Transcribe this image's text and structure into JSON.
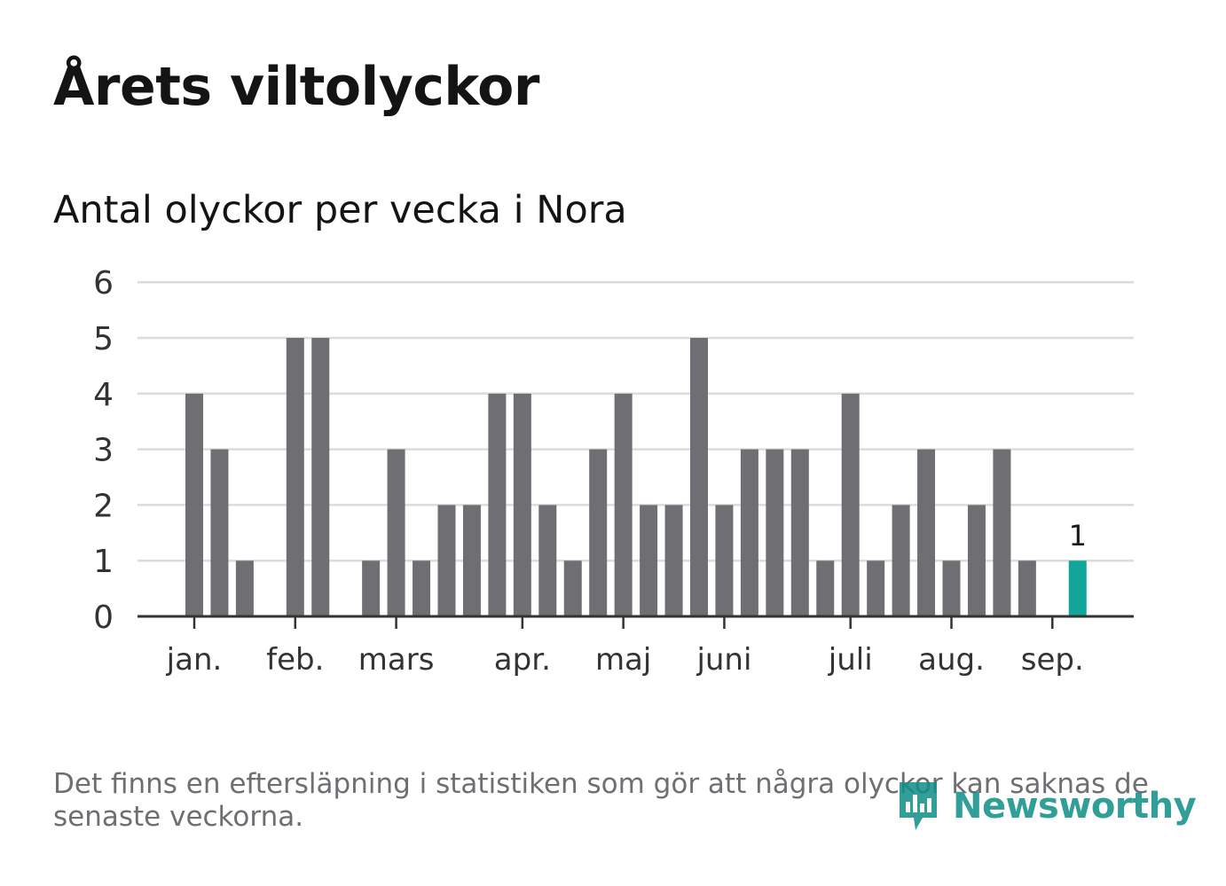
{
  "title": "Årets viltolyckor",
  "subtitle": "Antal olyckor per vecka i Nora",
  "footnote": "Det finns en eftersläpning i statistiken som gör att några olyckor kan saknas de senaste veckorna.",
  "brand": "Newsworthy",
  "colors": {
    "bar": "#6e6e73",
    "highlight": "#12a69a",
    "grid": "#dcdcdc",
    "axis": "#333333",
    "text": "#1a1a1a"
  },
  "chart_data": {
    "type": "bar",
    "title": "Antal olyckor per vecka i Nora",
    "xlabel": "",
    "ylabel": "",
    "ylim": [
      0,
      6
    ],
    "yticks": [
      0,
      1,
      2,
      3,
      4,
      5,
      6
    ],
    "grid": true,
    "weeks": [
      1,
      2,
      3,
      4,
      5,
      6,
      7,
      8,
      9,
      10,
      11,
      12,
      13,
      14,
      15,
      16,
      17,
      18,
      19,
      20,
      21,
      22,
      23,
      24,
      25,
      26,
      27,
      28,
      29,
      30,
      31,
      32,
      33,
      34,
      35,
      36,
      37
    ],
    "values": [
      4,
      3,
      1,
      0,
      5,
      5,
      0,
      1,
      3,
      1,
      2,
      2,
      4,
      4,
      2,
      1,
      3,
      4,
      2,
      2,
      5,
      2,
      3,
      3,
      3,
      1,
      4,
      1,
      2,
      3,
      1,
      2,
      3,
      1,
      0,
      1,
      null
    ],
    "highlight": {
      "week": 36,
      "value": 1,
      "label": "1"
    },
    "month_ticks": [
      {
        "label": "jan.",
        "week": 1
      },
      {
        "label": "feb.",
        "week": 5
      },
      {
        "label": "mars",
        "week": 9
      },
      {
        "label": "apr.",
        "week": 14
      },
      {
        "label": "maj",
        "week": 18
      },
      {
        "label": "juni",
        "week": 22
      },
      {
        "label": "juli",
        "week": 27
      },
      {
        "label": "aug.",
        "week": 31
      },
      {
        "label": "sep.",
        "week": 35
      }
    ]
  }
}
